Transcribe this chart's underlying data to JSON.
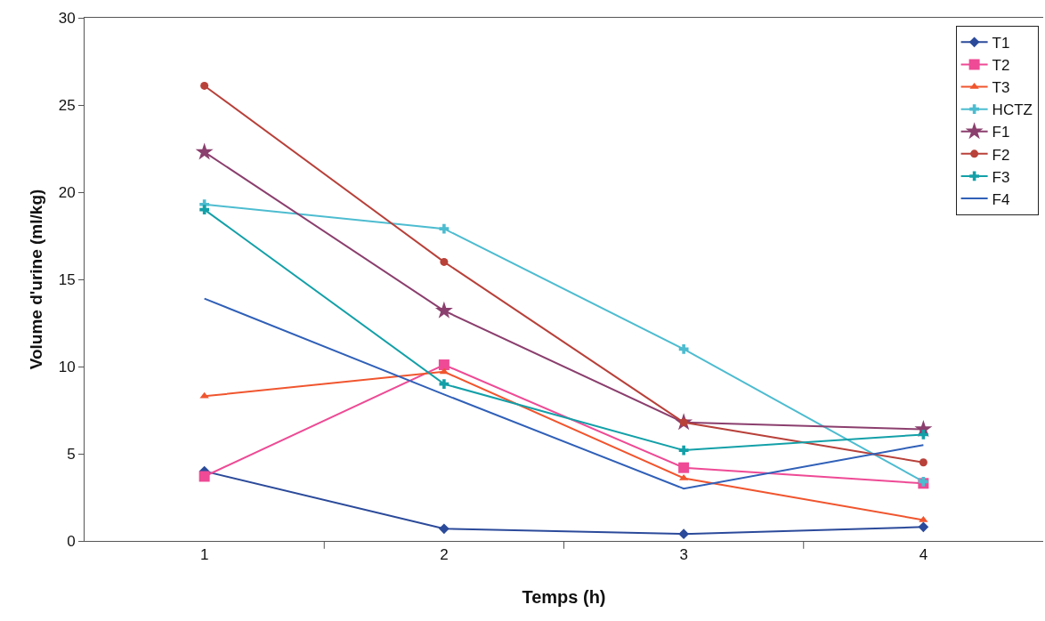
{
  "chart_data": {
    "type": "line",
    "xlabel": "Temps (h)",
    "ylabel": "Volume d'urine (ml/kg)",
    "categories": [
      "1",
      "2",
      "3",
      "4"
    ],
    "ylim": [
      0,
      30
    ],
    "yticks": [
      0,
      5,
      10,
      15,
      20,
      25,
      30
    ],
    "grid": false,
    "legend": "top right",
    "line_style": "solid",
    "series": [
      {
        "name": "T1",
        "color": "#2b4a9a",
        "marker": "diamond",
        "values": [
          4.0,
          0.7,
          0.4,
          0.8
        ]
      },
      {
        "name": "T2",
        "color": "#ee4a95",
        "marker": "square",
        "values": [
          3.7,
          10.1,
          4.2,
          3.3
        ]
      },
      {
        "name": "T3",
        "color": "#f0552e",
        "marker": "triangle",
        "values": [
          8.3,
          9.7,
          3.6,
          1.2
        ]
      },
      {
        "name": "HCTZ",
        "color": "#4dbcd0",
        "marker": "cross",
        "values": [
          19.3,
          17.9,
          11.0,
          3.4
        ]
      },
      {
        "name": "F1",
        "color": "#8b3f6e",
        "marker": "star",
        "values": [
          22.3,
          13.2,
          6.8,
          6.4
        ]
      },
      {
        "name": "F2",
        "color": "#b8413a",
        "marker": "circle",
        "values": [
          26.1,
          16.0,
          6.8,
          4.5
        ]
      },
      {
        "name": "F3",
        "color": "#13a0a8",
        "marker": "cross",
        "values": [
          19.0,
          9.0,
          5.2,
          6.1
        ]
      },
      {
        "name": "F4",
        "color": "#3060b8",
        "marker": "none",
        "values": [
          13.9,
          8.4,
          3.0,
          5.5
        ]
      }
    ]
  }
}
